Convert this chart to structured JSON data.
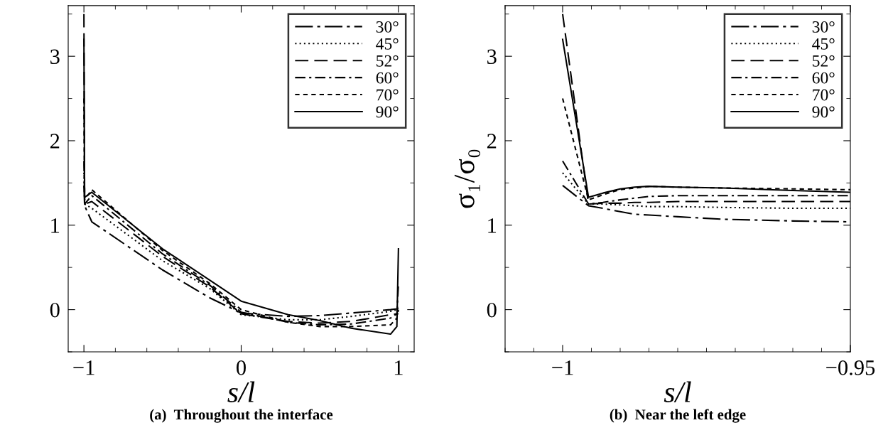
{
  "chart_data": [
    {
      "type": "line",
      "xlabel": "s/l",
      "annotations": [
        "(a)  Throughout the interface"
      ],
      "xlim": [
        -1.1,
        1.1
      ],
      "xticks": [
        -1,
        0,
        1
      ],
      "ylim": [
        -0.5,
        3.6
      ],
      "yticks": [
        0,
        1,
        2,
        3
      ],
      "legend": "top right",
      "grid": false,
      "x": [
        -1,
        -0.9955,
        -0.95,
        -0.5,
        -0.2,
        0,
        0.3,
        0.5,
        0.7,
        0.95,
        0.99,
        1
      ],
      "series": [
        {
          "name": "30°",
          "color": "#000000",
          "line_style": "longdashdot",
          "values": [
            1.47,
            1.23,
            1.04,
            0.47,
            0.14,
            -0.04,
            -0.08,
            -0.07,
            -0.04,
            0.0,
            0.01,
            0.02
          ]
        },
        {
          "name": "45°",
          "color": "#000000",
          "line_style": "dotted",
          "values": [
            1.62,
            1.25,
            1.2,
            0.58,
            0.25,
            -0.06,
            -0.12,
            -0.12,
            -0.08,
            -0.02,
            0.0,
            0.0
          ]
        },
        {
          "name": "52°",
          "color": "#000000",
          "line_style": "dashed",
          "values": [
            3.5,
            1.25,
            1.28,
            0.63,
            0.27,
            -0.05,
            -0.14,
            -0.16,
            -0.14,
            -0.06,
            -0.05,
            -0.05
          ]
        },
        {
          "name": "60°",
          "color": "#000000",
          "line_style": "dashdot",
          "values": [
            1.76,
            1.25,
            1.35,
            0.66,
            0.29,
            -0.03,
            -0.15,
            -0.18,
            -0.17,
            -0.1,
            -0.05,
            0.3
          ]
        },
        {
          "name": "70°",
          "color": "#000000",
          "line_style": "densedash",
          "values": [
            2.5,
            1.3,
            1.42,
            0.7,
            0.31,
            0.0,
            -0.15,
            -0.2,
            -0.2,
            -0.18,
            -0.1,
            0.0
          ]
        },
        {
          "name": "90°",
          "color": "#000000",
          "line_style": "solid",
          "values": [
            3.2,
            1.33,
            1.39,
            0.72,
            0.35,
            0.1,
            -0.06,
            -0.13,
            -0.22,
            -0.29,
            -0.2,
            0.72
          ]
        }
      ]
    },
    {
      "type": "line",
      "xlabel": "s/l",
      "ylabel": "σ₁/σ₀",
      "annotations": [
        "(b)  Near the left edge"
      ],
      "xlim": [
        -1.01,
        -0.95
      ],
      "xticks": [
        -1,
        {
          "value": -0.95,
          "label": "−0.95"
        }
      ],
      "ylim": [
        -0.5,
        3.6
      ],
      "yticks": [
        0,
        1,
        2,
        3
      ],
      "legend": "top right",
      "grid": false,
      "x": [
        -1,
        -0.9955,
        -0.993,
        -0.99,
        -0.9875,
        -0.985,
        -0.98,
        -0.972,
        -0.96,
        -0.95
      ],
      "series": [
        {
          "name": "30°",
          "color": "#000000",
          "line_style": "longdashdot",
          "values": [
            1.47,
            1.23,
            1.2,
            1.16,
            1.13,
            1.12,
            1.1,
            1.07,
            1.05,
            1.04
          ]
        },
        {
          "name": "45°",
          "color": "#000000",
          "line_style": "dotted",
          "values": [
            1.62,
            1.25,
            1.25,
            1.24,
            1.23,
            1.22,
            1.22,
            1.21,
            1.2,
            1.2
          ]
        },
        {
          "name": "52°",
          "color": "#000000",
          "line_style": "dashed",
          "values": [
            3.5,
            1.25,
            1.26,
            1.26,
            1.27,
            1.27,
            1.28,
            1.28,
            1.28,
            1.28
          ]
        },
        {
          "name": "60°",
          "color": "#000000",
          "line_style": "dashdot",
          "values": [
            1.76,
            1.25,
            1.27,
            1.3,
            1.32,
            1.34,
            1.35,
            1.35,
            1.35,
            1.35
          ]
        },
        {
          "name": "70°",
          "color": "#000000",
          "line_style": "densedash",
          "values": [
            2.5,
            1.3,
            1.36,
            1.42,
            1.44,
            1.46,
            1.45,
            1.44,
            1.43,
            1.42
          ]
        },
        {
          "name": "90°",
          "color": "#000000",
          "line_style": "solid",
          "values": [
            3.2,
            1.33,
            1.38,
            1.43,
            1.45,
            1.46,
            1.45,
            1.44,
            1.41,
            1.39
          ]
        }
      ]
    }
  ]
}
